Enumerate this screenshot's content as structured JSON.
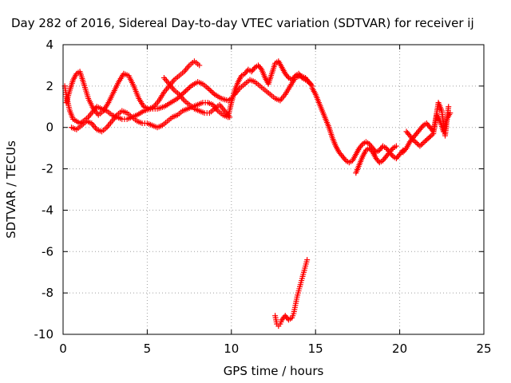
{
  "chart_data": {
    "type": "scatter",
    "title": "Day 282 of 2016, Sidereal Day-to-day VTEC variation (SDTVAR) for receiver ij",
    "xlabel": "GPS time / hours",
    "ylabel": "SDTVAR / TECUs",
    "xlim": [
      0,
      25
    ],
    "ylim": [
      -10,
      4
    ],
    "xticks": [
      "0",
      "5",
      "10",
      "15",
      "20",
      "25"
    ],
    "yticks": [
      "-10",
      "-8",
      "-6",
      "-4",
      "-2",
      "0",
      "2",
      "4"
    ],
    "grid": true,
    "marker": "plus",
    "color": "#ff0000",
    "series": [
      {
        "x": [
          0.1,
          0.2,
          0.4,
          0.6,
          0.8,
          1.0,
          1.2,
          1.5,
          1.8,
          2.0,
          2.3,
          2.6,
          2.9,
          3.2,
          3.5,
          3.8,
          4.1,
          4.4,
          4.8,
          5.2,
          5.6,
          6.0,
          6.4,
          6.8,
          7.2,
          7.6,
          8.0,
          8.3,
          8.6,
          9.0,
          9.4,
          9.8,
          10.0
        ],
        "y": [
          2.0,
          1.5,
          0.8,
          0.4,
          0.3,
          0.2,
          0.3,
          0.5,
          0.8,
          1.0,
          0.9,
          0.8,
          0.6,
          0.5,
          0.4,
          0.4,
          0.5,
          0.6,
          0.8,
          0.9,
          0.9,
          1.0,
          1.2,
          1.4,
          1.7,
          2.0,
          2.2,
          2.1,
          1.9,
          1.6,
          1.4,
          1.3,
          1.4
        ]
      },
      {
        "x": [
          0.2,
          0.4,
          0.6,
          0.8,
          1.0,
          1.2,
          1.5,
          1.8,
          2.1,
          2.4,
          2.7,
          3.0,
          3.3,
          3.6,
          3.9,
          4.2,
          4.5,
          4.8,
          5.1,
          5.4,
          5.7,
          6.0,
          6.3,
          6.6,
          6.9,
          7.2,
          7.5,
          7.8,
          8.1
        ],
        "y": [
          1.2,
          1.8,
          2.3,
          2.6,
          2.7,
          2.2,
          1.4,
          0.9,
          0.6,
          0.8,
          1.2,
          1.7,
          2.2,
          2.6,
          2.5,
          2.0,
          1.4,
          1.0,
          0.9,
          1.0,
          1.3,
          1.7,
          2.0,
          2.3,
          2.5,
          2.7,
          3.0,
          3.2,
          3.0
        ]
      },
      {
        "x": [
          0.5,
          0.8,
          1.1,
          1.4,
          1.7,
          2.0,
          2.3,
          2.6,
          2.9,
          3.2,
          3.5,
          3.8,
          4.1,
          4.4,
          4.7,
          5.0,
          5.3,
          5.6,
          5.9,
          6.2,
          6.5,
          6.8,
          7.1,
          7.4,
          7.7,
          8.0,
          8.3,
          8.6,
          8.9,
          9.2,
          9.5,
          9.8
        ],
        "y": [
          0.0,
          -0.1,
          0.1,
          0.3,
          0.2,
          -0.1,
          -0.2,
          0.0,
          0.3,
          0.6,
          0.8,
          0.7,
          0.5,
          0.3,
          0.2,
          0.2,
          0.1,
          0.0,
          0.1,
          0.3,
          0.5,
          0.6,
          0.8,
          0.9,
          1.0,
          1.1,
          1.2,
          1.2,
          1.1,
          0.8,
          0.6,
          0.5
        ]
      },
      {
        "x": [
          6.0,
          6.3,
          6.6,
          6.9,
          7.2,
          7.5,
          7.8,
          8.1,
          8.4,
          8.7,
          9.0,
          9.3,
          9.6,
          9.9
        ],
        "y": [
          2.4,
          2.1,
          1.8,
          1.6,
          1.3,
          1.1,
          0.9,
          0.8,
          0.7,
          0.7,
          0.9,
          1.1,
          0.8,
          0.5
        ]
      },
      {
        "x": [
          9.8,
          10.0,
          10.2,
          10.4,
          10.6,
          10.8,
          11.0,
          11.2,
          11.4,
          11.6,
          11.8,
          12.0,
          12.2,
          12.4,
          12.6,
          12.8,
          13.0,
          13.2,
          13.4,
          13.6,
          13.8,
          14.0,
          14.2,
          14.4,
          14.6,
          14.8
        ],
        "y": [
          0.5,
          1.2,
          1.8,
          2.2,
          2.5,
          2.6,
          2.8,
          2.7,
          2.9,
          3.0,
          2.8,
          2.4,
          2.1,
          2.6,
          3.1,
          3.2,
          2.9,
          2.6,
          2.4,
          2.3,
          2.5,
          2.6,
          2.4,
          2.3,
          2.2,
          2.0
        ]
      },
      {
        "x": [
          10.2,
          10.5,
          10.8,
          11.1,
          11.4,
          11.7,
          12.0,
          12.3,
          12.6,
          12.9,
          13.2,
          13.5,
          13.8,
          14.1,
          14.4,
          14.7
        ],
        "y": [
          1.6,
          1.9,
          2.1,
          2.3,
          2.2,
          2.0,
          1.8,
          1.6,
          1.4,
          1.3,
          1.6,
          2.0,
          2.4,
          2.5,
          2.4,
          2.1
        ]
      },
      {
        "x": [
          14.8,
          15.0,
          15.2,
          15.4,
          15.6,
          15.8,
          16.0,
          16.2,
          16.4,
          16.6,
          16.8,
          17.0,
          17.2,
          17.4,
          17.6,
          17.8,
          18.0,
          18.2,
          18.4,
          18.6,
          18.8,
          19.0,
          19.2,
          19.4,
          19.6,
          19.8,
          20.0,
          20.2
        ],
        "y": [
          1.9,
          1.6,
          1.2,
          0.8,
          0.4,
          0.0,
          -0.5,
          -0.9,
          -1.2,
          -1.4,
          -1.6,
          -1.7,
          -1.6,
          -1.3,
          -1.0,
          -0.8,
          -0.7,
          -0.8,
          -1.0,
          -1.2,
          -1.1,
          -0.9,
          -1.0,
          -1.2,
          -1.4,
          -1.5,
          -1.3,
          -1.1
        ]
      },
      {
        "x": [
          17.4,
          17.6,
          17.8,
          18.0,
          18.2,
          18.4,
          18.6,
          18.8,
          19.0,
          19.2,
          19.4,
          19.6,
          19.8
        ],
        "y": [
          -2.2,
          -1.8,
          -1.4,
          -1.1,
          -1.0,
          -1.2,
          -1.5,
          -1.7,
          -1.6,
          -1.4,
          -1.2,
          -1.0,
          -0.9
        ]
      },
      {
        "x": [
          20.2,
          20.4,
          20.6,
          20.8,
          21.0,
          21.2,
          21.4,
          21.6,
          21.8,
          22.0,
          22.2,
          22.4,
          22.6,
          22.8,
          23.0
        ],
        "y": [
          -1.2,
          -1.0,
          -0.7,
          -0.5,
          -0.3,
          -0.1,
          0.1,
          0.2,
          0.0,
          -0.2,
          0.6,
          0.3,
          -0.2,
          0.4,
          0.7
        ]
      },
      {
        "x": [
          20.4,
          20.8,
          21.2,
          21.6,
          22.0,
          22.3,
          22.5,
          22.7,
          22.9
        ],
        "y": [
          -0.2,
          -0.6,
          -0.9,
          -0.6,
          -0.3,
          1.2,
          0.8,
          -0.4,
          1.0
        ]
      },
      {
        "x": [
          12.6,
          12.7,
          12.8,
          12.9,
          13.0,
          13.2,
          13.4,
          13.6,
          13.7,
          13.8,
          13.9,
          14.0,
          14.1,
          14.2,
          14.3,
          14.4,
          14.5
        ],
        "y": [
          -9.1,
          -9.5,
          -9.6,
          -9.5,
          -9.3,
          -9.1,
          -9.3,
          -9.2,
          -9.0,
          -8.6,
          -8.2,
          -7.9,
          -7.6,
          -7.3,
          -7.0,
          -6.7,
          -6.4
        ]
      }
    ]
  }
}
